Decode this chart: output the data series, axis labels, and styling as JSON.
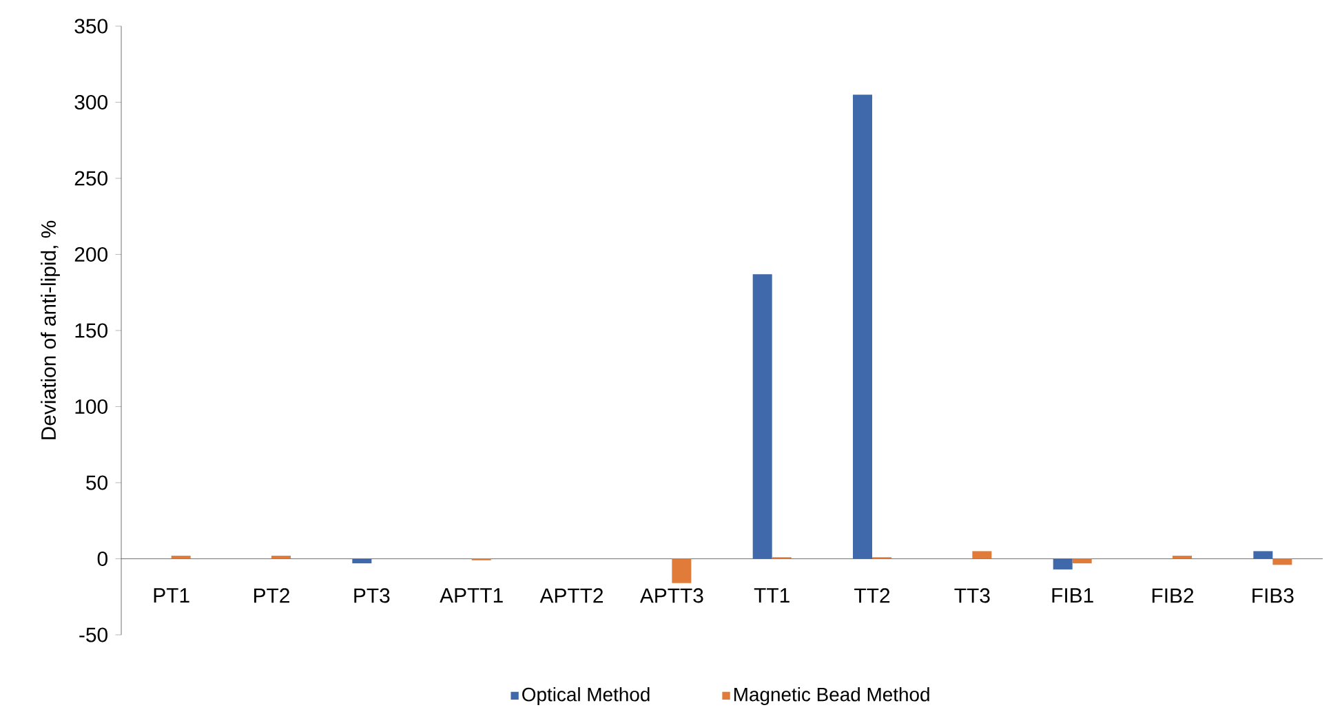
{
  "chart_data": {
    "type": "bar",
    "ylabel": "Deviation of anti-lipid, %",
    "categories": [
      "PT1",
      "PT2",
      "PT3",
      "APTT1",
      "APTT2",
      "APTT3",
      "TT1",
      "TT2",
      "TT3",
      "FIB1",
      "FIB2",
      "FIB3"
    ],
    "series": [
      {
        "name": "Optical Method",
        "color": "#3f69aa",
        "values": [
          0,
          0,
          -3,
          0,
          0,
          0,
          187,
          305,
          0,
          -7,
          0,
          5
        ]
      },
      {
        "name": "Magnetic Bead Method",
        "color": "#e07b39",
        "values": [
          2,
          2,
          0,
          -1,
          0,
          -16,
          1,
          1,
          5,
          -3,
          2,
          -4
        ]
      }
    ],
    "ylim": [
      -50,
      350
    ],
    "yticks": [
      -50,
      0,
      50,
      100,
      150,
      200,
      250,
      300,
      350
    ],
    "legend": "bottom"
  }
}
